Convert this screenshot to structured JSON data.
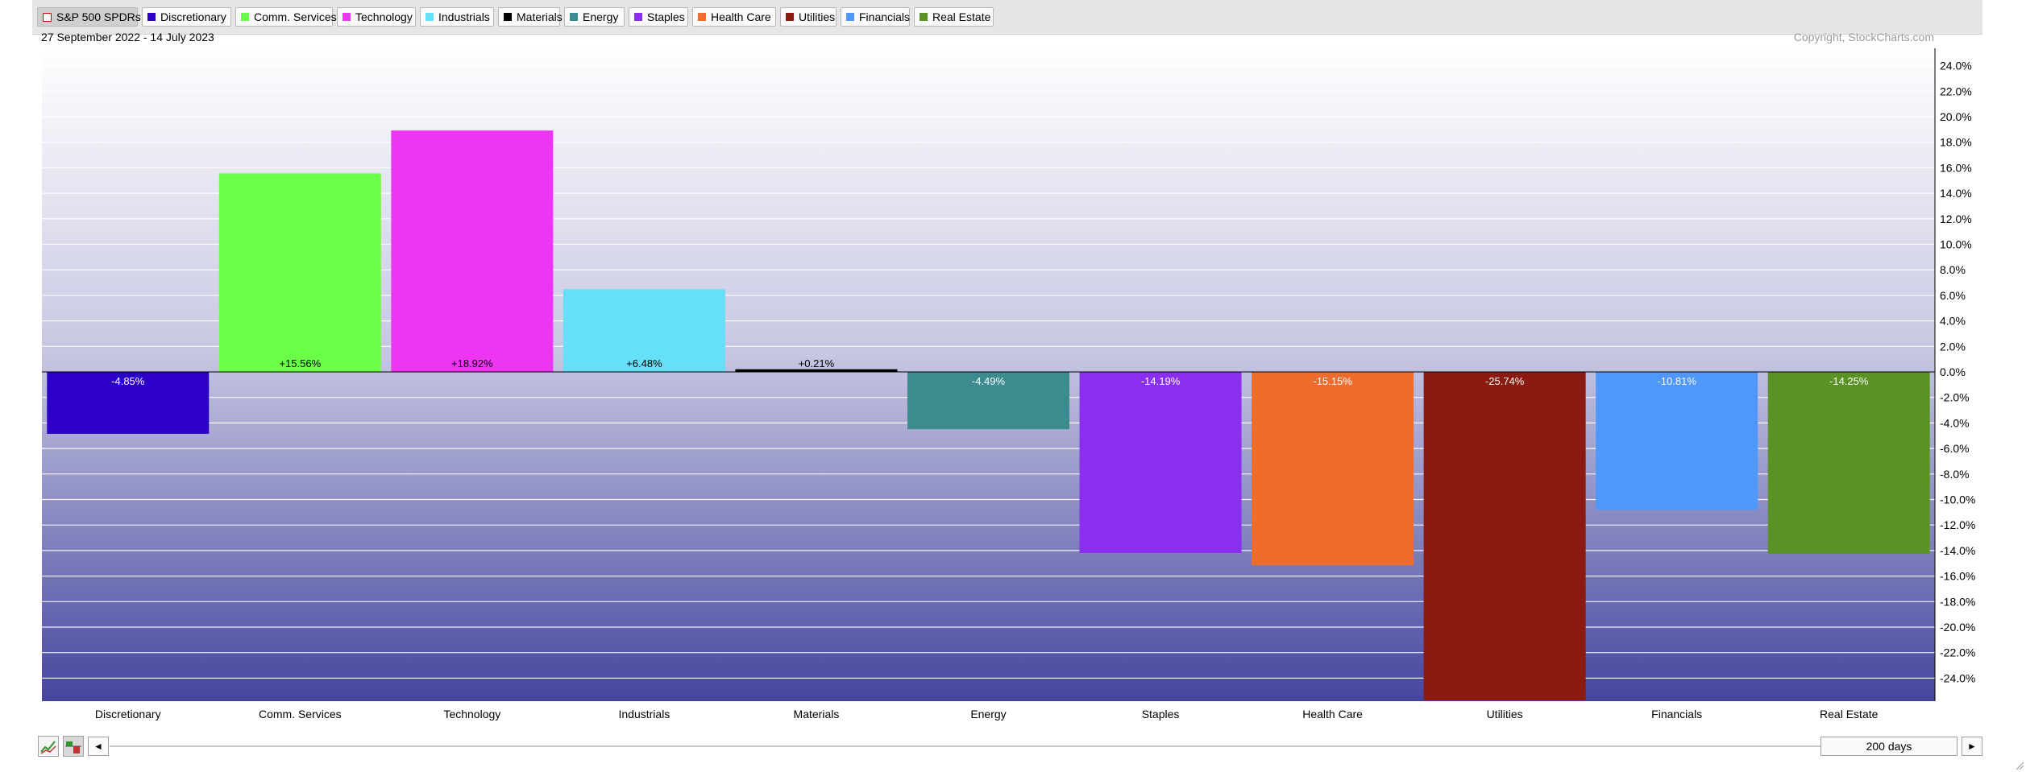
{
  "legend": [
    {
      "label": "S&P 500 SPDRs",
      "color": "#ffffff",
      "active": true
    },
    {
      "label": "Discretionary",
      "color": "#2d00c8"
    },
    {
      "label": "Comm. Services",
      "color": "#6cff4a"
    },
    {
      "label": "Technology",
      "color": "#ee36f2"
    },
    {
      "label": "Industrials",
      "color": "#66e0f8"
    },
    {
      "label": "Materials",
      "color": "#000000"
    },
    {
      "label": "Energy",
      "color": "#3b8b8f"
    },
    {
      "label": "Staples",
      "color": "#8a2ef0"
    },
    {
      "label": "Health Care",
      "color": "#ee6d2c"
    },
    {
      "label": "Utilities",
      "color": "#8b1a10"
    },
    {
      "label": "Financials",
      "color": "#4f97f8"
    },
    {
      "label": "Real Estate",
      "color": "#5b9226"
    }
  ],
  "header": {
    "date_range": "27 September 2022 - 14 July 2023",
    "copyright": "Copyright, StockCharts.com"
  },
  "chart_data": {
    "type": "bar",
    "categories": [
      "Discretionary",
      "Comm. Services",
      "Technology",
      "Industrials",
      "Materials",
      "Energy",
      "Staples",
      "Health Care",
      "Utilities",
      "Financials",
      "Real Estate"
    ],
    "values": [
      -4.85,
      15.56,
      18.92,
      6.48,
      0.21,
      -4.49,
      -14.19,
      -15.15,
      -25.74,
      -10.81,
      -14.25
    ],
    "value_labels": [
      "-4.85%",
      "+15.56%",
      "+18.92%",
      "+6.48%",
      "+0.21%",
      "-4.49%",
      "-14.19%",
      "-15.15%",
      "-25.74%",
      "-10.81%",
      "-14.25%"
    ],
    "colors": [
      "#2d00c8",
      "#6cff4a",
      "#ee36f2",
      "#66e0f8",
      "#000000",
      "#3b8b8f",
      "#8a2ef0",
      "#ee6d2c",
      "#8b1a10",
      "#4f97f8",
      "#5b9226"
    ],
    "yticks": [
      "24.0%",
      "22.0%",
      "20.0%",
      "18.0%",
      "16.0%",
      "14.0%",
      "12.0%",
      "10.0%",
      "8.0%",
      "6.0%",
      "4.0%",
      "2.0%",
      "0.0%",
      "-2.0%",
      "-4.0%",
      "-6.0%",
      "-8.0%",
      "-10.0%",
      "-12.0%",
      "-14.0%",
      "-16.0%",
      "-18.0%",
      "-20.0%",
      "-22.0%",
      "-24.0%"
    ],
    "ylim": [
      -26,
      25
    ],
    "grid": true,
    "y_axis_side": "right"
  },
  "controls": {
    "period": "200 days",
    "left_arrow": "◄",
    "right_arrow": "►"
  }
}
